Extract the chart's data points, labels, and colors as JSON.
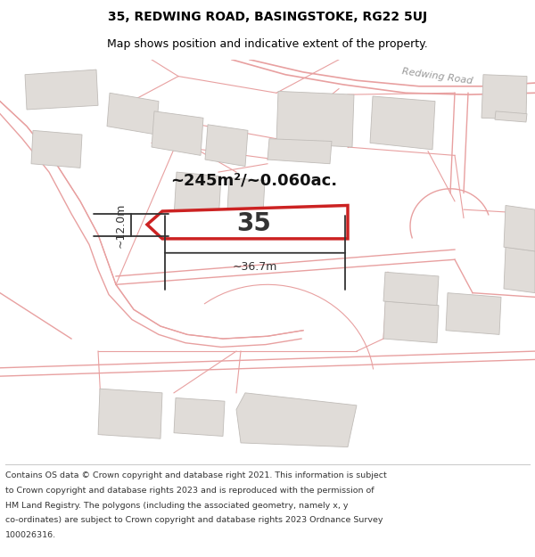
{
  "title": "35, REDWING ROAD, BASINGSTOKE, RG22 5UJ",
  "subtitle": "Map shows position and indicative extent of the property.",
  "footer": "Contains OS data © Crown copyright and database right 2021. This information is subject to Crown copyright and database rights 2023 and is reproduced with the permission of HM Land Registry. The polygons (including the associated geometry, namely x, y co-ordinates) are subject to Crown copyright and database rights 2023 Ordnance Survey 100026316.",
  "area_label": "~245m²/~0.060ac.",
  "plot_number": "35",
  "dim_width": "~36.7m",
  "dim_height": "~12.0m",
  "road_label": "Redwing Road",
  "map_bg": "#f7f4f0",
  "plot_fill": "#ffffff",
  "plot_edge": "#cc2222",
  "building_fill": "#e0dcd8",
  "building_edge": "#c0bcb8",
  "road_color": "#e8a0a0",
  "road_color_dark": "#cc2222",
  "title_fontsize": 10,
  "subtitle_fontsize": 9
}
